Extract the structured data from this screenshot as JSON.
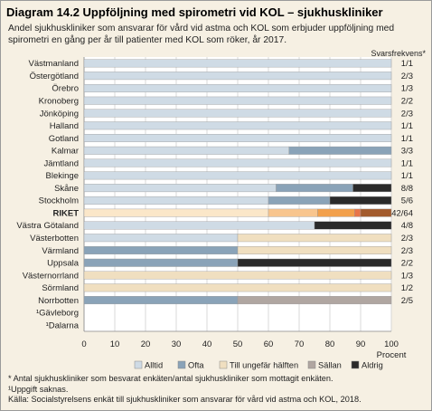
{
  "title": "Diagram 14.2 Uppföljning med spirometri vid KOL – sjukhuskliniker",
  "subtitle": "Andel sjukhuskliniker som ansvarar för vård vid astma och KOL som erbjuder uppföljning med spirometri en gång per år till patienter med KOL som röker, år 2017.",
  "chart_data": {
    "type": "bar",
    "orientation": "horizontal",
    "stacked": true,
    "categories": [
      "Västmanland",
      "Östergötland",
      "Örebro",
      "Kronoberg",
      "Jönköping",
      "Halland",
      "Gotland",
      "Kalmar",
      "Jämtland",
      "Blekinge",
      "Skåne",
      "Stockholm",
      "RIKET",
      "Västra Götaland",
      "Västerbotten",
      "Värmland",
      "Uppsala",
      "Västernorrland",
      "Sörmland",
      "Norrbotten",
      "¹Gävleborg",
      "¹Dalarna"
    ],
    "response_rates": [
      "1/1",
      "2/3",
      "1/3",
      "2/2",
      "2/3",
      "1/1",
      "1/1",
      "3/3",
      "1/1",
      "1/1",
      "8/8",
      "5/6",
      "42/64",
      "4/8",
      "2/3",
      "2/3",
      "2/2",
      "1/3",
      "1/2",
      "2/5",
      "",
      ""
    ],
    "response_header": "Svarsfrekvens*",
    "series": [
      {
        "name": "Alltid",
        "color": "#cfdbe5",
        "values": [
          100,
          100,
          100,
          100,
          100,
          100,
          100,
          66.7,
          100,
          100,
          62.5,
          60,
          60,
          75,
          50,
          0,
          0,
          0,
          0,
          0,
          0,
          0
        ]
      },
      {
        "name": "Ofta",
        "color": "#8aa3b8",
        "values": [
          0,
          0,
          0,
          0,
          0,
          0,
          0,
          33.3,
          0,
          0,
          25,
          20,
          16,
          0,
          0,
          50,
          50,
          0,
          0,
          50,
          0,
          0
        ]
      },
      {
        "name": "Till ungefär hälften",
        "color": "#f0dfc0",
        "values": [
          0,
          0,
          0,
          0,
          0,
          0,
          0,
          0,
          0,
          0,
          0,
          0,
          12,
          0,
          50,
          50,
          0,
          100,
          100,
          0,
          0,
          0
        ]
      },
      {
        "name": "Sällan",
        "color": "#b0a6a1",
        "values": [
          0,
          0,
          0,
          0,
          0,
          0,
          0,
          0,
          0,
          0,
          0,
          0,
          2,
          0,
          0,
          0,
          0,
          0,
          0,
          50,
          0,
          0
        ]
      },
      {
        "name": "Aldrig",
        "color": "#2a2a2a",
        "values": [
          0,
          0,
          0,
          0,
          0,
          0,
          0,
          0,
          0,
          0,
          12.5,
          20,
          10,
          25,
          0,
          0,
          50,
          0,
          0,
          0,
          0,
          0
        ]
      }
    ],
    "highlight_category": "RIKET",
    "highlight_series": [
      {
        "name": "Alltid",
        "color": "#fbe7c9"
      },
      {
        "name": "Ofta",
        "color": "#f8c58e"
      },
      {
        "name": "Till ungefär hälften",
        "color": "#f2a04c"
      },
      {
        "name": "Sällan",
        "color": "#e8754a"
      },
      {
        "name": "Aldrig",
        "color": "#a35b2d"
      }
    ],
    "xlim": [
      0,
      100
    ],
    "xticks": [
      0,
      10,
      20,
      30,
      40,
      50,
      60,
      70,
      80,
      90,
      100
    ],
    "xlabel": "Procent",
    "legend_position": "bottom",
    "grid": true
  },
  "footnotes": [
    "* Antal sjukhuskliniker som besvarat enkäten/antal sjukhuskliniker som mottagit enkäten.",
    "¹Uppgift saknas.",
    "Källa:  Socialstyrelsens enkät till sjukhuskliniker som ansvarar för vård vid astma och KOL, 2018."
  ]
}
